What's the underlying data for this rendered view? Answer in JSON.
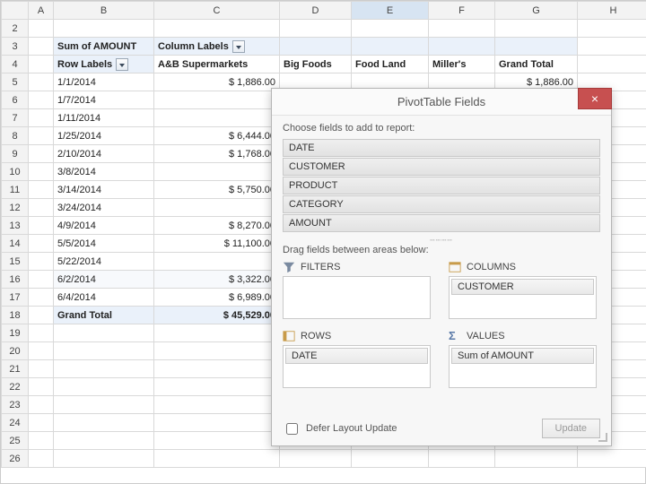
{
  "columns": [
    "A",
    "B",
    "C",
    "D",
    "E",
    "F",
    "G",
    "H"
  ],
  "rowCount": 26,
  "selectedCol": "E",
  "pivot": {
    "headerRow1": {
      "b": "Sum of AMOUNT",
      "c": "Column Labels"
    },
    "headerRow2": {
      "b": "Row Labels",
      "c": "A&B Supermarkets",
      "d": "Big Foods",
      "e": "Food Land",
      "f": "Miller's",
      "g": "Grand Total"
    },
    "rows": [
      {
        "date": "1/1/2014",
        "c": "$ 1,886.00",
        "g": "$ 1,886.00"
      },
      {
        "date": "1/7/2014"
      },
      {
        "date": "1/11/2014"
      },
      {
        "date": "1/25/2014",
        "c": "$ 6,444.00"
      },
      {
        "date": "2/10/2014",
        "c": "$ 1,768.00"
      },
      {
        "date": "3/8/2014"
      },
      {
        "date": "3/14/2014",
        "c": "$ 5,750.00"
      },
      {
        "date": "3/24/2014"
      },
      {
        "date": "4/9/2014",
        "c": "$ 8,270.00"
      },
      {
        "date": "5/5/2014",
        "c": "$ 11,100.00"
      },
      {
        "date": "5/22/2014"
      },
      {
        "date": "6/2/2014",
        "c": "$ 3,322.00"
      },
      {
        "date": "6/4/2014",
        "c": "$ 6,989.00"
      }
    ],
    "grandTotal": {
      "label": "Grand Total",
      "c": "$ 45,529.00"
    }
  },
  "pane": {
    "title": "PivotTable Fields",
    "hint": "Choose fields to add to report:",
    "fields": [
      "DATE",
      "CUSTOMER",
      "PRODUCT",
      "CATEGORY",
      "AMOUNT"
    ],
    "dragHint": "Drag fields between areas below:",
    "areas": {
      "filters": {
        "label": "FILTERS",
        "items": []
      },
      "columns": {
        "label": "COLUMNS",
        "items": [
          "CUSTOMER"
        ]
      },
      "rows": {
        "label": "ROWS",
        "items": [
          "DATE"
        ]
      },
      "values": {
        "label": "VALUES",
        "items": [
          "Sum of AMOUNT"
        ]
      }
    },
    "deferLabel": "Defer Layout Update",
    "updateLabel": "Update"
  },
  "colors": {
    "pvtHeaderBg": "#eaf1fa",
    "gridBorder": "#d9d9d9",
    "paneBg": "#f7f7f7",
    "closeBg": "#c75050"
  }
}
